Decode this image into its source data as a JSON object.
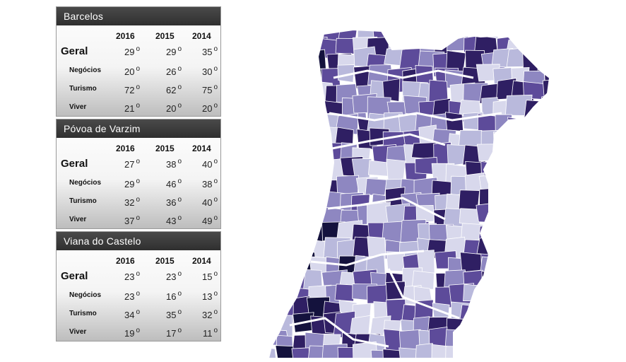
{
  "years": [
    "2016",
    "2015",
    "2014"
  ],
  "degree_symbol": "o",
  "panels": [
    {
      "title": "Barcelos",
      "rows": [
        {
          "label": "Geral",
          "values": [
            "29",
            "29",
            "35"
          ]
        },
        {
          "label": "Negócios",
          "values": [
            "20",
            "26",
            "30"
          ]
        },
        {
          "label": "Turismo",
          "values": [
            "72",
            "62",
            "75"
          ]
        },
        {
          "label": "Viver",
          "values": [
            "21",
            "20",
            "20"
          ]
        }
      ]
    },
    {
      "title": "Póvoa de Varzim",
      "rows": [
        {
          "label": "Geral",
          "values": [
            "27",
            "38",
            "40"
          ]
        },
        {
          "label": "Negócios",
          "values": [
            "29",
            "46",
            "38"
          ]
        },
        {
          "label": "Turismo",
          "values": [
            "32",
            "36",
            "40"
          ]
        },
        {
          "label": "Viver",
          "values": [
            "37",
            "43",
            "49"
          ]
        }
      ]
    },
    {
      "title": "Viana do Castelo",
      "rows": [
        {
          "label": "Geral",
          "values": [
            "23",
            "23",
            "15"
          ]
        },
        {
          "label": "Negócios",
          "values": [
            "23",
            "16",
            "13"
          ]
        },
        {
          "label": "Turismo",
          "values": [
            "34",
            "35",
            "32"
          ]
        },
        {
          "label": "Viver",
          "values": [
            "19",
            "17",
            "11"
          ]
        }
      ]
    }
  ],
  "map": {
    "palette": [
      "#d8d8ec",
      "#b9b9dc",
      "#8e87c1",
      "#5d4b9a",
      "#2f1f63",
      "#14123d"
    ]
  }
}
